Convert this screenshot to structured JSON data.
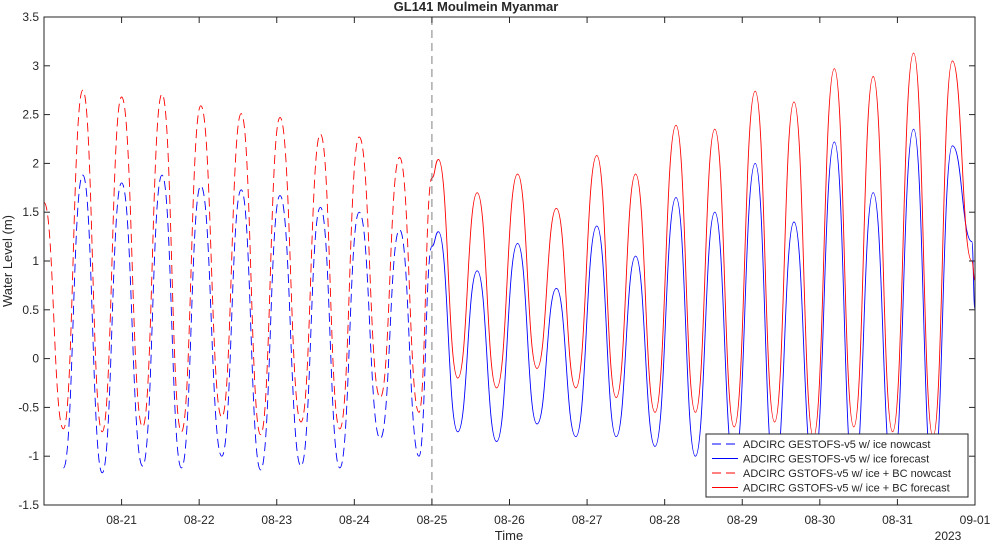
{
  "chart_data": {
    "type": "line",
    "title": "GL141 Moulmein Myanmar",
    "xlabel": "Time",
    "ylabel": "Water Level (m)",
    "year_label": "2023",
    "xlim": [
      "2023-08-20T00:00",
      "2023-09-01T00:00"
    ],
    "ylim": [
      -1.5,
      3.5
    ],
    "yticks": [
      "-1.5",
      "-1",
      "-0.5",
      "0",
      "0.5",
      "1",
      "1.5",
      "2",
      "2.5",
      "3",
      "3.5"
    ],
    "xticks": [
      "08-21",
      "08-22",
      "08-23",
      "08-24",
      "08-25",
      "08-26",
      "08-27",
      "08-28",
      "08-29",
      "08-30",
      "08-31",
      "09-01"
    ],
    "forecast_start": "2023-08-25T00:00",
    "grid": false,
    "legend_position": "bottom-right",
    "colors": {
      "gestofs": "#0000ff",
      "gstofs_bc": "#ff0000",
      "divider": "#808080"
    },
    "series": [
      {
        "name": "ADCIRC GESTOFS-v5 w/ ice nowcast",
        "color": "#0000ff",
        "dash": true,
        "x": [
          "2023-08-20T06:00",
          "2023-08-20T12:00",
          "2023-08-20T18:00",
          "2023-08-21T00:00",
          "2023-08-21T06:30",
          "2023-08-21T12:30",
          "2023-08-21T18:30",
          "2023-08-22T00:30",
          "2023-08-22T07:00",
          "2023-08-22T13:00",
          "2023-08-22T19:00",
          "2023-08-23T01:00",
          "2023-08-23T07:30",
          "2023-08-23T13:30",
          "2023-08-23T19:30",
          "2023-08-24T01:30",
          "2023-08-24T08:00",
          "2023-08-24T14:00",
          "2023-08-24T20:00",
          "2023-08-25T00:00"
        ],
        "y": [
          -1.12,
          1.88,
          -1.17,
          1.8,
          -1.1,
          1.88,
          -1.12,
          1.77,
          -1.0,
          1.73,
          -1.14,
          1.67,
          -1.1,
          1.55,
          -1.12,
          1.5,
          -0.82,
          1.32,
          -1.0,
          1.15
        ]
      },
      {
        "name": "ADCIRC GESTOFS-v5 w/ ice forecast",
        "color": "#0000ff",
        "dash": false,
        "x": [
          "2023-08-25T00:00",
          "2023-08-25T02:00",
          "2023-08-25T08:00",
          "2023-08-25T14:00",
          "2023-08-25T20:00",
          "2023-08-26T02:30",
          "2023-08-26T08:30",
          "2023-08-26T14:30",
          "2023-08-26T20:30",
          "2023-08-27T03:00",
          "2023-08-27T09:00",
          "2023-08-27T15:00",
          "2023-08-27T21:00",
          "2023-08-28T03:30",
          "2023-08-28T09:30",
          "2023-08-28T15:30",
          "2023-08-28T21:30",
          "2023-08-29T04:00",
          "2023-08-29T10:00",
          "2023-08-29T16:00",
          "2023-08-29T22:00",
          "2023-08-30T04:30",
          "2023-08-30T10:30",
          "2023-08-30T16:30",
          "2023-08-30T22:30",
          "2023-08-31T05:00",
          "2023-08-31T11:00",
          "2023-08-31T17:00",
          "2023-08-31T23:00",
          "2023-09-01T00:00"
        ],
        "y": [
          1.15,
          1.3,
          -0.75,
          0.9,
          -0.85,
          1.18,
          -0.67,
          0.72,
          -0.8,
          1.36,
          -0.8,
          1.05,
          -0.9,
          1.65,
          -1.0,
          1.5,
          -1.1,
          2.0,
          -1.2,
          1.4,
          -1.15,
          2.22,
          -1.25,
          1.7,
          -1.2,
          2.35,
          -1.25,
          2.18,
          1.2,
          0.5
        ]
      },
      {
        "name": "ADCIRC GSTOFS-v5 w/ ice + BC nowcast",
        "color": "#ff0000",
        "dash": true,
        "x": [
          "2023-08-20T00:00",
          "2023-08-20T06:00",
          "2023-08-20T12:00",
          "2023-08-20T18:00",
          "2023-08-21T00:00",
          "2023-08-21T06:30",
          "2023-08-21T12:30",
          "2023-08-21T18:30",
          "2023-08-22T00:30",
          "2023-08-22T07:00",
          "2023-08-22T13:00",
          "2023-08-22T19:00",
          "2023-08-23T01:00",
          "2023-08-23T07:30",
          "2023-08-23T13:30",
          "2023-08-23T19:30",
          "2023-08-24T01:30",
          "2023-08-24T08:00",
          "2023-08-24T14:00",
          "2023-08-24T20:00",
          "2023-08-25T00:00"
        ],
        "y": [
          1.6,
          -0.72,
          2.75,
          -0.75,
          2.68,
          -0.7,
          2.71,
          -0.75,
          2.59,
          -0.6,
          2.51,
          -0.78,
          2.47,
          -0.65,
          2.3,
          -0.72,
          2.27,
          -0.4,
          2.06,
          -0.55,
          1.85
        ]
      },
      {
        "name": "ADCIRC GSTOFS-v5 w/ ice + BC forecast",
        "color": "#ff0000",
        "dash": false,
        "x": [
          "2023-08-25T00:00",
          "2023-08-25T02:00",
          "2023-08-25T08:00",
          "2023-08-25T14:00",
          "2023-08-25T20:00",
          "2023-08-26T02:30",
          "2023-08-26T08:30",
          "2023-08-26T14:30",
          "2023-08-26T20:30",
          "2023-08-27T03:00",
          "2023-08-27T09:00",
          "2023-08-27T15:00",
          "2023-08-27T21:00",
          "2023-08-28T03:30",
          "2023-08-28T09:30",
          "2023-08-28T15:30",
          "2023-08-28T21:30",
          "2023-08-29T04:00",
          "2023-08-29T10:00",
          "2023-08-29T16:00",
          "2023-08-29T22:00",
          "2023-08-30T04:30",
          "2023-08-30T10:30",
          "2023-08-30T16:30",
          "2023-08-30T22:30",
          "2023-08-31T05:00",
          "2023-08-31T11:00",
          "2023-08-31T17:00",
          "2023-08-31T23:00",
          "2023-09-01T00:00"
        ],
        "y": [
          1.85,
          2.04,
          -0.2,
          1.7,
          -0.3,
          1.89,
          -0.1,
          1.54,
          -0.3,
          2.08,
          -0.4,
          1.89,
          -0.55,
          2.39,
          -0.55,
          2.35,
          -0.7,
          2.74,
          -0.65,
          2.63,
          -0.8,
          2.97,
          -0.7,
          2.89,
          -0.75,
          3.13,
          -0.8,
          3.05,
          1.0,
          0.8
        ]
      }
    ]
  }
}
